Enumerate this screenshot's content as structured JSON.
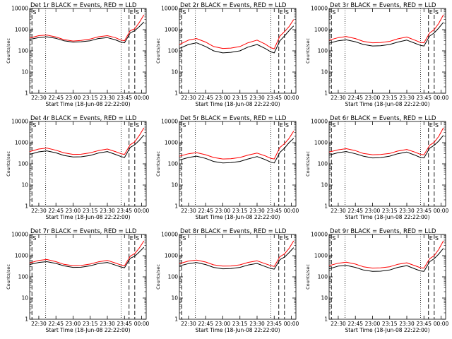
{
  "figure": {
    "black_color": "#000000",
    "red_color": "#ff0000"
  },
  "chart_data": [
    {
      "type": "line",
      "title": "Det 1r BLACK = Events, RED = LLD",
      "xlabel": "Start Time (18-Jun-08 22:22:00)",
      "ylabel": "Counts/sec",
      "xlim": [
        "22:22",
        "00:04"
      ],
      "ylim": [
        1,
        10000
      ],
      "yscale": "log",
      "grid": false,
      "xticks": [
        "22:30",
        "22:45",
        "23:00",
        "23:15",
        "23:30",
        "23:45",
        "00:00"
      ],
      "yticks": [
        "1",
        "10",
        "100",
        "1000",
        "10000"
      ],
      "markers": [
        {
          "label": "S",
          "time": "22:24"
        },
        {
          "label": "E",
          "time": "23:49"
        },
        {
          "label": "S",
          "time": "23:54"
        }
      ],
      "dashed_lines": [
        "22:24",
        "23:49",
        "23:54"
      ],
      "dotted_lines": [
        "22:36",
        "23:42"
      ],
      "x": [
        "22:22",
        "22:30",
        "22:37",
        "22:45",
        "22:52",
        "23:00",
        "23:07",
        "23:15",
        "23:22",
        "23:30",
        "23:37",
        "23:42",
        "23:45",
        "23:50",
        "23:54",
        "23:58",
        "00:02"
      ],
      "series": [
        {
          "name": "BLACK",
          "color": "#000000",
          "values": [
            350,
            420,
            460,
            390,
            300,
            260,
            270,
            300,
            380,
            420,
            330,
            260,
            240,
            700,
            900,
            1400,
            2300
          ]
        },
        {
          "name": "RED",
          "color": "#ff0000",
          "values": [
            400,
            520,
            560,
            450,
            340,
            290,
            310,
            360,
            460,
            520,
            420,
            320,
            300,
            900,
            1100,
            2200,
            5000
          ]
        }
      ]
    },
    {
      "type": "line",
      "title": "Det 2r BLACK = Events, RED = LLD",
      "xlabel": "Start Time (18-Jun-08 22:22:00)",
      "ylabel": "Counts/sec",
      "xlim": [
        "22:22",
        "00:04"
      ],
      "ylim": [
        1,
        10000
      ],
      "yscale": "log",
      "grid": false,
      "xticks": [
        "22:30",
        "22:45",
        "23:00",
        "23:15",
        "23:30",
        "23:45",
        "00:00"
      ],
      "yticks": [
        "1",
        "10",
        "100",
        "1000",
        "10000"
      ],
      "markers": [
        {
          "label": "S",
          "time": "22:24"
        },
        {
          "label": "E",
          "time": "23:49"
        },
        {
          "label": "S",
          "time": "23:54"
        }
      ],
      "dashed_lines": [
        "22:24",
        "23:49",
        "23:54"
      ],
      "dotted_lines": [
        "22:36",
        "23:42"
      ],
      "x": [
        "22:22",
        "22:30",
        "22:37",
        "22:45",
        "22:52",
        "23:00",
        "23:07",
        "23:15",
        "23:22",
        "23:30",
        "23:37",
        "23:42",
        "23:45",
        "23:50",
        "23:54",
        "23:58",
        "00:02"
      ],
      "series": [
        {
          "name": "BLACK",
          "color": "#000000",
          "values": [
            130,
            200,
            240,
            160,
            100,
            80,
            85,
            100,
            150,
            200,
            130,
            90,
            80,
            300,
            500,
            900,
            1500
          ]
        },
        {
          "name": "RED",
          "color": "#ff0000",
          "values": [
            200,
            320,
            380,
            260,
            160,
            130,
            135,
            160,
            240,
            320,
            210,
            140,
            125,
            500,
            800,
            1400,
            3000
          ]
        }
      ]
    },
    {
      "type": "line",
      "title": "Det 3r BLACK = Events, RED = LLD",
      "xlabel": "Start Time (18-Jun-08 22:22:00)",
      "ylabel": "Counts/sec",
      "xlim": [
        "22:22",
        "00:04"
      ],
      "ylim": [
        1,
        10000
      ],
      "yscale": "log",
      "grid": false,
      "xticks": [
        "22:30",
        "22:45",
        "23:00",
        "23:15",
        "23:30",
        "23:45",
        "00:00"
      ],
      "yticks": [
        "1",
        "10",
        "100",
        "1000",
        "10000"
      ],
      "markers": [
        {
          "label": "S",
          "time": "22:24"
        },
        {
          "label": "E",
          "time": "23:49"
        },
        {
          "label": "S",
          "time": "23:54"
        }
      ],
      "dashed_lines": [
        "22:24",
        "23:49",
        "23:54"
      ],
      "dotted_lines": [
        "22:36",
        "23:42"
      ],
      "x": [
        "22:22",
        "22:30",
        "22:37",
        "22:45",
        "22:52",
        "23:00",
        "23:07",
        "23:15",
        "23:22",
        "23:30",
        "23:37",
        "23:42",
        "23:45",
        "23:50",
        "23:54",
        "23:58",
        "00:02"
      ],
      "series": [
        {
          "name": "BLACK",
          "color": "#000000",
          "values": [
            230,
            300,
            330,
            270,
            200,
            170,
            175,
            200,
            260,
            320,
            230,
            180,
            170,
            500,
            700,
            1200,
            2200
          ]
        },
        {
          "name": "RED",
          "color": "#ff0000",
          "values": [
            320,
            420,
            470,
            380,
            280,
            240,
            245,
            280,
            370,
            450,
            320,
            250,
            240,
            700,
            1000,
            2000,
            5000
          ]
        }
      ]
    },
    {
      "type": "line",
      "title": "Det 4r BLACK = Events, RED = LLD",
      "xlabel": "Start Time (18-Jun-08 22:22:00)",
      "ylabel": "Counts/sec",
      "xlim": [
        "22:22",
        "00:04"
      ],
      "ylim": [
        1,
        10000
      ],
      "yscale": "log",
      "grid": false,
      "xticks": [
        "22:30",
        "22:45",
        "23:00",
        "23:15",
        "23:30",
        "23:45",
        "00:00"
      ],
      "yticks": [
        "1",
        "10",
        "100",
        "1000",
        "10000"
      ],
      "markers": [
        {
          "label": "S",
          "time": "22:24"
        },
        {
          "label": "E",
          "time": "23:49"
        },
        {
          "label": "S",
          "time": "23:54"
        }
      ],
      "dashed_lines": [
        "22:24",
        "23:49",
        "23:54"
      ],
      "dotted_lines": [
        "22:36",
        "23:42"
      ],
      "x": [
        "22:22",
        "22:30",
        "22:37",
        "22:45",
        "22:52",
        "23:00",
        "23:07",
        "23:15",
        "23:22",
        "23:30",
        "23:37",
        "23:42",
        "23:45",
        "23:50",
        "23:54",
        "23:58",
        "00:02"
      ],
      "series": [
        {
          "name": "BLACK",
          "color": "#000000",
          "values": [
            280,
            370,
            410,
            330,
            250,
            210,
            215,
            250,
            320,
            380,
            280,
            220,
            200,
            600,
            800,
            1300,
            2300
          ]
        },
        {
          "name": "RED",
          "color": "#ff0000",
          "values": [
            380,
            500,
            560,
            440,
            330,
            280,
            285,
            330,
            420,
            500,
            380,
            300,
            280,
            800,
            1100,
            2200,
            5000
          ]
        }
      ]
    },
    {
      "type": "line",
      "title": "Det 5r BLACK = Events, RED = LLD",
      "xlabel": "Start Time (18-Jun-08 22:22:00)",
      "ylabel": "Counts/sec",
      "xlim": [
        "22:22",
        "00:04"
      ],
      "ylim": [
        1,
        10000
      ],
      "yscale": "log",
      "grid": false,
      "xticks": [
        "22:30",
        "22:45",
        "23:00",
        "23:15",
        "23:30",
        "23:45",
        "00:00"
      ],
      "yticks": [
        "1",
        "10",
        "100",
        "1000",
        "10000"
      ],
      "markers": [
        {
          "label": "S",
          "time": "22:24"
        },
        {
          "label": "E",
          "time": "23:49"
        },
        {
          "label": "S",
          "time": "23:54"
        }
      ],
      "dashed_lines": [
        "22:24",
        "23:49",
        "23:54"
      ],
      "dotted_lines": [
        "22:36",
        "23:42"
      ],
      "x": [
        "22:22",
        "22:30",
        "22:37",
        "22:45",
        "22:52",
        "23:00",
        "23:07",
        "23:15",
        "23:22",
        "23:30",
        "23:37",
        "23:42",
        "23:45",
        "23:50",
        "23:54",
        "23:58",
        "00:02"
      ],
      "series": [
        {
          "name": "BLACK",
          "color": "#000000",
          "values": [
            150,
            200,
            230,
            180,
            130,
            110,
            115,
            130,
            170,
            220,
            160,
            120,
            110,
            350,
            550,
            1000,
            1600
          ]
        },
        {
          "name": "RED",
          "color": "#ff0000",
          "values": [
            230,
            300,
            340,
            270,
            200,
            170,
            175,
            200,
            260,
            320,
            240,
            180,
            170,
            600,
            900,
            1600,
            3500
          ]
        }
      ]
    },
    {
      "type": "line",
      "title": "Det 6r BLACK = Events, RED = LLD",
      "xlabel": "Start Time (18-Jun-08 22:22:00)",
      "ylabel": "Counts/sec",
      "xlim": [
        "22:22",
        "00:04"
      ],
      "ylim": [
        1,
        10000
      ],
      "yscale": "log",
      "grid": false,
      "xticks": [
        "22:30",
        "22:45",
        "23:00",
        "23:15",
        "23:30",
        "23:45",
        "00:00"
      ],
      "yticks": [
        "1",
        "10",
        "100",
        "1000",
        "10000"
      ],
      "markers": [
        {
          "label": "S",
          "time": "22:24"
        },
        {
          "label": "E",
          "time": "23:49"
        },
        {
          "label": "S",
          "time": "23:54"
        }
      ],
      "dashed_lines": [
        "22:24",
        "23:49",
        "23:54"
      ],
      "dotted_lines": [
        "22:36",
        "23:42"
      ],
      "x": [
        "22:22",
        "22:30",
        "22:37",
        "22:45",
        "22:52",
        "23:00",
        "23:07",
        "23:15",
        "23:22",
        "23:30",
        "23:37",
        "23:42",
        "23:45",
        "23:50",
        "23:54",
        "23:58",
        "00:02"
      ],
      "series": [
        {
          "name": "BLACK",
          "color": "#000000",
          "values": [
            260,
            340,
            380,
            300,
            230,
            190,
            195,
            230,
            300,
            360,
            260,
            200,
            190,
            550,
            750,
            1200,
            2200
          ]
        },
        {
          "name": "RED",
          "color": "#ff0000",
          "values": [
            360,
            460,
            520,
            420,
            310,
            270,
            275,
            310,
            400,
            480,
            360,
            280,
            270,
            750,
            1050,
            2000,
            5000
          ]
        }
      ]
    },
    {
      "type": "line",
      "title": "Det 7r BLACK = Events, RED = LLD",
      "xlabel": "Start Time (18-Jun-08 22:22:00)",
      "ylabel": "Counts/sec",
      "xlim": [
        "22:22",
        "00:04"
      ],
      "ylim": [
        1,
        10000
      ],
      "yscale": "log",
      "grid": false,
      "xticks": [
        "22:30",
        "22:45",
        "23:00",
        "23:15",
        "23:30",
        "23:45",
        "00:00"
      ],
      "yticks": [
        "1",
        "10",
        "100",
        "1000",
        "10000"
      ],
      "markers": [
        {
          "label": "S",
          "time": "22:24"
        },
        {
          "label": "E",
          "time": "23:49"
        },
        {
          "label": "S",
          "time": "23:54"
        }
      ],
      "dashed_lines": [
        "22:24",
        "23:49",
        "23:54"
      ],
      "dotted_lines": [
        "22:36",
        "23:42"
      ],
      "x": [
        "22:22",
        "22:30",
        "22:37",
        "22:45",
        "22:52",
        "23:00",
        "23:07",
        "23:15",
        "23:22",
        "23:30",
        "23:37",
        "23:42",
        "23:45",
        "23:50",
        "23:54",
        "23:58",
        "00:02"
      ],
      "series": [
        {
          "name": "BLACK",
          "color": "#000000",
          "values": [
            380,
            480,
            520,
            430,
            330,
            280,
            285,
            330,
            420,
            480,
            360,
            290,
            270,
            750,
            950,
            1500,
            2500
          ]
        },
        {
          "name": "RED",
          "color": "#ff0000",
          "values": [
            450,
            600,
            660,
            520,
            390,
            340,
            345,
            400,
            510,
            600,
            450,
            360,
            330,
            950,
            1250,
            2300,
            5000
          ]
        }
      ]
    },
    {
      "type": "line",
      "title": "Det 8r BLACK = Events, RED = LLD",
      "xlabel": "Start Time (18-Jun-08 22:22:00)",
      "ylabel": "Counts/sec",
      "xlim": [
        "22:22",
        "00:04"
      ],
      "ylim": [
        1,
        10000
      ],
      "yscale": "log",
      "grid": false,
      "xticks": [
        "22:30",
        "22:45",
        "23:00",
        "23:15",
        "23:30",
        "23:45",
        "00:00"
      ],
      "yticks": [
        "1",
        "10",
        "100",
        "1000",
        "10000"
      ],
      "markers": [
        {
          "label": "S",
          "time": "22:24"
        },
        {
          "label": "E",
          "time": "23:49"
        },
        {
          "label": "S",
          "time": "23:54"
        }
      ],
      "dashed_lines": [
        "22:24",
        "23:49",
        "23:54"
      ],
      "dotted_lines": [
        "22:36",
        "23:42"
      ],
      "x": [
        "22:22",
        "22:30",
        "22:37",
        "22:45",
        "22:52",
        "23:00",
        "23:07",
        "23:15",
        "23:22",
        "23:30",
        "23:37",
        "23:42",
        "23:45",
        "23:50",
        "23:54",
        "23:58",
        "00:02"
      ],
      "series": [
        {
          "name": "BLACK",
          "color": "#000000",
          "values": [
            330,
            420,
            470,
            380,
            280,
            240,
            245,
            280,
            360,
            430,
            310,
            250,
            230,
            650,
            850,
            1400,
            2400
          ]
        },
        {
          "name": "RED",
          "color": "#ff0000",
          "values": [
            420,
            560,
            620,
            500,
            370,
            320,
            325,
            370,
            480,
            570,
            420,
            340,
            310,
            900,
            1200,
            2200,
            5000
          ]
        }
      ]
    },
    {
      "type": "line",
      "title": "Det 9r BLACK = Events, RED = LLD",
      "xlabel": "Start Time (18-Jun-08 22:22:00)",
      "ylabel": "Counts/sec",
      "xlim": [
        "22:22",
        "00:04"
      ],
      "ylim": [
        1,
        10000
      ],
      "yscale": "log",
      "grid": false,
      "xticks": [
        "22:30",
        "22:45",
        "23:00",
        "23:15",
        "23:30",
        "23:45",
        "00:00"
      ],
      "yticks": [
        "1",
        "10",
        "100",
        "1000",
        "10000"
      ],
      "markers": [
        {
          "label": "S",
          "time": "22:24"
        },
        {
          "label": "E",
          "time": "23:49"
        },
        {
          "label": "S",
          "time": "23:54"
        }
      ],
      "dashed_lines": [
        "22:24",
        "23:49",
        "23:54"
      ],
      "dotted_lines": [
        "22:36",
        "23:42"
      ],
      "x": [
        "22:22",
        "22:30",
        "22:37",
        "22:45",
        "22:52",
        "23:00",
        "23:07",
        "23:15",
        "23:22",
        "23:30",
        "23:37",
        "23:42",
        "23:45",
        "23:50",
        "23:54",
        "23:58",
        "00:02"
      ],
      "series": [
        {
          "name": "BLACK",
          "color": "#000000",
          "values": [
            240,
            320,
            350,
            280,
            210,
            180,
            185,
            210,
            280,
            340,
            240,
            190,
            180,
            520,
            720,
            1200,
            2200
          ]
        },
        {
          "name": "RED",
          "color": "#ff0000",
          "values": [
            340,
            440,
            490,
            400,
            300,
            260,
            265,
            300,
            390,
            460,
            340,
            270,
            260,
            720,
            1000,
            2000,
            5000
          ]
        }
      ]
    }
  ]
}
